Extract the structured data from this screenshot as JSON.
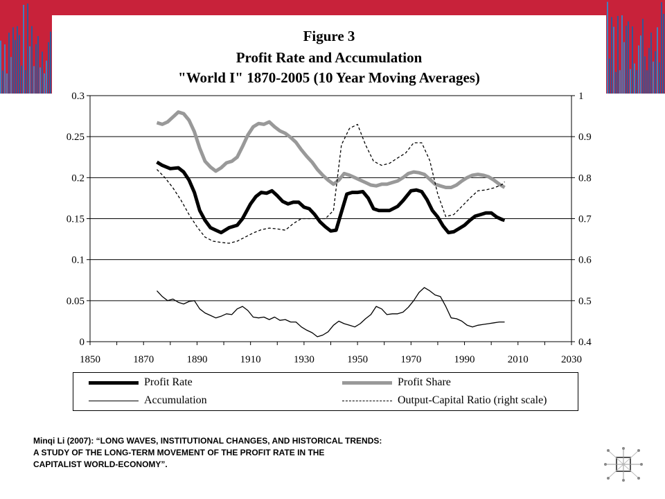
{
  "figure_label": "Figure 3",
  "title": "Profit Rate and Accumulation",
  "subtitle": "\"World I\" 1870-2005 (10 Year Moving Averages)",
  "citation_lines": [
    "Minqi Li (2007): “LONG WAVES, INSTITUTIONAL CHANGES, AND HISTORICAL TRENDS:",
    "A STUDY OF THE LONG-TERM MOVEMENT OF THE PROFIT RATE IN THE",
    "CAPITALIST WORLD-ECONOMY”."
  ],
  "colors": {
    "banner_red": "#c8223a",
    "banner_blue": "#2a8fd6",
    "profit_share": "#999999",
    "series_black": "#000000"
  },
  "chart_data": {
    "type": "line",
    "title": "",
    "xlabel": "",
    "ylabel": "",
    "xlim": [
      1850,
      2030
    ],
    "ylim": [
      0,
      0.3
    ],
    "y2lim": [
      0.4,
      1
    ],
    "grid": "horizontal",
    "legend_placement": "bottom",
    "x_ticks": [
      "1850",
      "1870",
      "1890",
      "1910",
      "1930",
      "1950",
      "1970",
      "1990",
      "2010",
      "2030"
    ],
    "y_ticks": [
      "0",
      "0.05",
      "0.1",
      "0.15",
      "0.2",
      "0.25",
      "0.3"
    ],
    "y2_ticks": [
      "0.4",
      "0.5",
      "0.6",
      "0.7",
      "0.8",
      "0.9",
      "1"
    ],
    "series": [
      {
        "name": "Profit Rate",
        "axis": "left",
        "style": "thick-black",
        "x": [
          1875,
          1877,
          1880,
          1883,
          1885,
          1887,
          1889,
          1891,
          1893,
          1895,
          1897,
          1899,
          1902,
          1905,
          1907,
          1910,
          1912,
          1914,
          1916,
          1918,
          1920,
          1922,
          1924,
          1926,
          1928,
          1930,
          1932,
          1934,
          1936,
          1938,
          1940,
          1942,
          1944,
          1946,
          1948,
          1950,
          1952,
          1954,
          1956,
          1958,
          1960,
          1962,
          1965,
          1967,
          1970,
          1972,
          1974,
          1976,
          1978,
          1980,
          1982,
          1984,
          1986,
          1988,
          1990,
          1992,
          1994,
          1996,
          1998,
          2000,
          2002,
          2004,
          2005
        ],
        "y": [
          0.219,
          0.215,
          0.211,
          0.212,
          0.207,
          0.197,
          0.182,
          0.16,
          0.148,
          0.139,
          0.136,
          0.133,
          0.139,
          0.142,
          0.15,
          0.168,
          0.177,
          0.182,
          0.181,
          0.184,
          0.178,
          0.171,
          0.168,
          0.17,
          0.17,
          0.164,
          0.162,
          0.155,
          0.146,
          0.14,
          0.135,
          0.136,
          0.158,
          0.18,
          0.182,
          0.182,
          0.183,
          0.175,
          0.162,
          0.16,
          0.16,
          0.16,
          0.165,
          0.172,
          0.184,
          0.185,
          0.183,
          0.173,
          0.16,
          0.152,
          0.141,
          0.133,
          0.134,
          0.138,
          0.142,
          0.148,
          0.153,
          0.155,
          0.157,
          0.157,
          0.152,
          0.149,
          0.148
        ]
      },
      {
        "name": "Profit Share",
        "axis": "left",
        "style": "thick-gray",
        "x": [
          1875,
          1877,
          1879,
          1881,
          1883,
          1885,
          1887,
          1889,
          1891,
          1893,
          1895,
          1897,
          1899,
          1901,
          1903,
          1905,
          1907,
          1909,
          1911,
          1913,
          1915,
          1917,
          1919,
          1921,
          1923,
          1925,
          1927,
          1929,
          1931,
          1933,
          1935,
          1937,
          1939,
          1941,
          1943,
          1945,
          1947,
          1949,
          1951,
          1953,
          1955,
          1957,
          1959,
          1961,
          1963,
          1965,
          1967,
          1969,
          1971,
          1973,
          1975,
          1977,
          1979,
          1981,
          1983,
          1985,
          1987,
          1989,
          1991,
          1993,
          1995,
          1997,
          1999,
          2001,
          2003,
          2005
        ],
        "y": [
          0.267,
          0.265,
          0.268,
          0.274,
          0.28,
          0.278,
          0.27,
          0.256,
          0.236,
          0.22,
          0.213,
          0.208,
          0.212,
          0.218,
          0.22,
          0.225,
          0.238,
          0.252,
          0.262,
          0.266,
          0.265,
          0.268,
          0.262,
          0.257,
          0.254,
          0.249,
          0.243,
          0.234,
          0.226,
          0.219,
          0.21,
          0.203,
          0.197,
          0.192,
          0.197,
          0.205,
          0.203,
          0.2,
          0.197,
          0.194,
          0.191,
          0.19,
          0.192,
          0.192,
          0.194,
          0.196,
          0.2,
          0.205,
          0.207,
          0.206,
          0.204,
          0.198,
          0.192,
          0.19,
          0.188,
          0.188,
          0.191,
          0.196,
          0.2,
          0.203,
          0.204,
          0.203,
          0.201,
          0.197,
          0.192,
          0.188
        ]
      },
      {
        "name": "Accumulation",
        "axis": "left",
        "style": "thin-black",
        "x": [
          1875,
          1877,
          1879,
          1881,
          1883,
          1885,
          1887,
          1889,
          1891,
          1893,
          1895,
          1897,
          1899,
          1901,
          1903,
          1905,
          1907,
          1909,
          1911,
          1913,
          1915,
          1917,
          1919,
          1921,
          1923,
          1925,
          1927,
          1929,
          1931,
          1933,
          1935,
          1937,
          1939,
          1941,
          1943,
          1945,
          1947,
          1949,
          1951,
          1953,
          1955,
          1957,
          1959,
          1961,
          1963,
          1965,
          1967,
          1969,
          1971,
          1973,
          1975,
          1977,
          1979,
          1981,
          1983,
          1985,
          1987,
          1989,
          1991,
          1993,
          1995,
          1997,
          1999,
          2001,
          2003,
          2005
        ],
        "y": [
          0.062,
          0.055,
          0.05,
          0.052,
          0.048,
          0.046,
          0.049,
          0.05,
          0.04,
          0.035,
          0.032,
          0.029,
          0.031,
          0.034,
          0.033,
          0.04,
          0.043,
          0.038,
          0.03,
          0.029,
          0.03,
          0.027,
          0.03,
          0.026,
          0.027,
          0.024,
          0.024,
          0.018,
          0.014,
          0.011,
          0.006,
          0.008,
          0.012,
          0.02,
          0.025,
          0.022,
          0.02,
          0.018,
          0.022,
          0.028,
          0.033,
          0.043,
          0.04,
          0.033,
          0.034,
          0.034,
          0.036,
          0.042,
          0.05,
          0.06,
          0.066,
          0.062,
          0.057,
          0.055,
          0.043,
          0.029,
          0.028,
          0.025,
          0.02,
          0.018,
          0.02,
          0.021,
          0.022,
          0.023,
          0.024,
          0.024
        ]
      },
      {
        "name": "Output-Capital Ratio (right scale)",
        "axis": "right",
        "style": "dashed-black",
        "x": [
          1875,
          1878,
          1881,
          1884,
          1887,
          1890,
          1893,
          1896,
          1899,
          1902,
          1905,
          1908,
          1911,
          1914,
          1917,
          1920,
          1923,
          1926,
          1929,
          1932,
          1935,
          1938,
          1941,
          1944,
          1947,
          1950,
          1953,
          1956,
          1959,
          1962,
          1965,
          1968,
          1971,
          1974,
          1977,
          1980,
          1983,
          1986,
          1989,
          1992,
          1995,
          1998,
          2001,
          2004,
          2005
        ],
        "y": [
          0.82,
          0.8,
          0.775,
          0.745,
          0.71,
          0.68,
          0.655,
          0.645,
          0.642,
          0.64,
          0.645,
          0.655,
          0.665,
          0.673,
          0.677,
          0.675,
          0.672,
          0.688,
          0.7,
          0.7,
          0.7,
          0.7,
          0.72,
          0.88,
          0.92,
          0.93,
          0.88,
          0.84,
          0.83,
          0.835,
          0.848,
          0.86,
          0.885,
          0.885,
          0.842,
          0.76,
          0.705,
          0.71,
          0.73,
          0.75,
          0.768,
          0.77,
          0.775,
          0.783,
          0.79
        ]
      }
    ]
  }
}
